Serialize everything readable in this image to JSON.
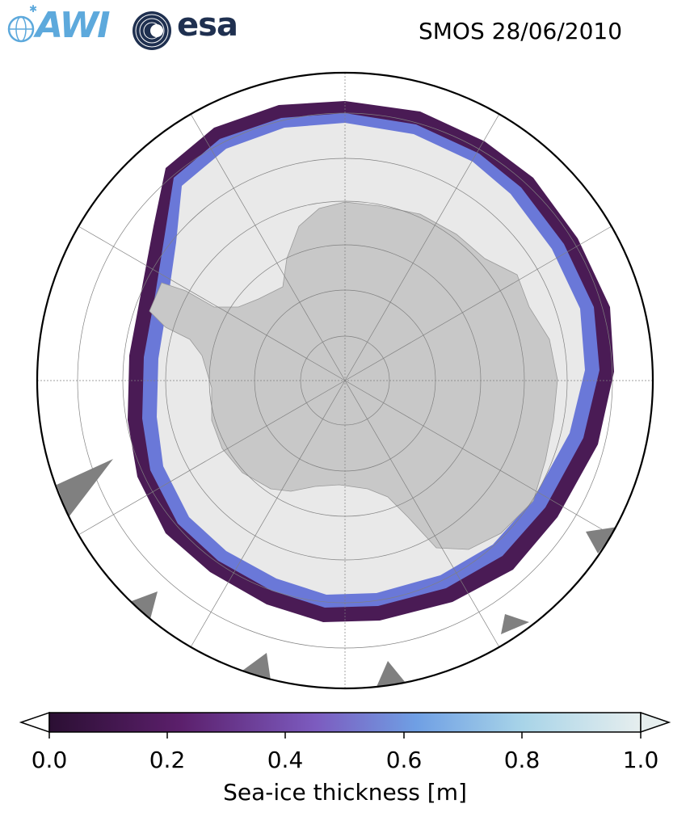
{
  "header": {
    "title": "SMOS 28/06/2010",
    "logos": [
      {
        "name": "awi-logo",
        "text": "AWI",
        "color": "#5da9dc"
      },
      {
        "name": "esa-logo",
        "text": "esa",
        "color": "#1f3050"
      }
    ]
  },
  "map": {
    "projection": "south-polar-stereographic",
    "colors": {
      "ocean": "#ffffff",
      "land": "#c8c8c8",
      "ice_thick": "#ebebeb",
      "ice_edge_thin": "#3f1747",
      "unavailable": "#808080",
      "graticule": "#808080"
    }
  },
  "colorbar": {
    "label": "Sea-ice thickness [m]",
    "ticks": [
      "0.0",
      "0.2",
      "0.4",
      "0.6",
      "0.8",
      "1.0"
    ],
    "range": [
      0.0,
      1.0
    ],
    "extend": "both",
    "colormap_stops": [
      "#2b0f33",
      "#5b1f6b",
      "#7c5bbf",
      "#6f9fe4",
      "#a8d4e8",
      "#e6eeee"
    ]
  }
}
